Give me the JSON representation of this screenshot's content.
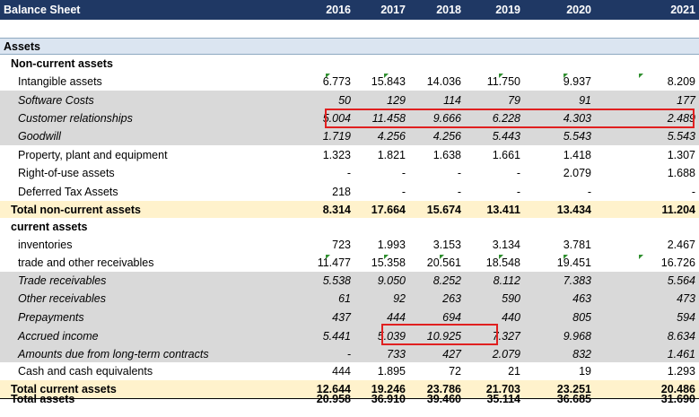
{
  "header": {
    "title": "Balance Sheet",
    "years": [
      "2016",
      "2017",
      "2018",
      "2019",
      "2020",
      "2021"
    ]
  },
  "rows": [
    {
      "type": "sec",
      "label": "Assets",
      "values": [
        "",
        "",
        "",
        "",
        "",
        ""
      ]
    },
    {
      "type": "sub",
      "label": "Non-current assets",
      "values": [
        "",
        "",
        "",
        "",
        "",
        ""
      ]
    },
    {
      "type": "norm",
      "label": "Intangible assets",
      "values": [
        "6.773",
        "15.843",
        "14.036",
        "11.750",
        "9.937",
        "8.209"
      ],
      "flags": [
        1,
        1,
        0,
        1,
        1,
        1
      ]
    },
    {
      "type": "ital",
      "label": "Software Costs",
      "values": [
        "50",
        "129",
        "114",
        "79",
        "91",
        "177"
      ]
    },
    {
      "type": "ital",
      "label": "Customer relationships",
      "values": [
        "5.004",
        "11.458",
        "9.666",
        "6.228",
        "4.303",
        "2.489"
      ]
    },
    {
      "type": "ital",
      "label": "Goodwill",
      "values": [
        "1.719",
        "4.256",
        "4.256",
        "5.443",
        "5.543",
        "5.543"
      ]
    },
    {
      "type": "norm",
      "label": "Property, plant and equipment",
      "values": [
        "1.323",
        "1.821",
        "1.638",
        "1.661",
        "1.418",
        "1.307"
      ]
    },
    {
      "type": "norm",
      "label": "Right-of-use assets",
      "values": [
        "-",
        "-",
        "-",
        "-",
        "2.079",
        "1.688"
      ]
    },
    {
      "type": "norm",
      "label": "Deferred Tax Assets",
      "values": [
        "218",
        "-",
        "-",
        "-",
        "-",
        "-"
      ]
    },
    {
      "type": "tot",
      "label": "Total non-current assets",
      "values": [
        "8.314",
        "17.664",
        "15.674",
        "13.411",
        "13.434",
        "11.204"
      ]
    },
    {
      "type": "sub",
      "label": "current assets",
      "values": [
        "",
        "",
        "",
        "",
        "",
        ""
      ]
    },
    {
      "type": "norm",
      "label": "inventories",
      "values": [
        "723",
        "1.993",
        "3.153",
        "3.134",
        "3.781",
        "2.467"
      ]
    },
    {
      "type": "norm",
      "label": "trade and other receivables",
      "values": [
        "11.477",
        "15.358",
        "20.561",
        "18.548",
        "19.451",
        "16.726"
      ],
      "flags": [
        1,
        1,
        1,
        1,
        1,
        1
      ]
    },
    {
      "type": "ital",
      "label": "Trade receivables",
      "values": [
        "5.538",
        "9.050",
        "8.252",
        "8.112",
        "7.383",
        "5.564"
      ]
    },
    {
      "type": "ital",
      "label": "Other receivables",
      "values": [
        "61",
        "92",
        "263",
        "590",
        "463",
        "473"
      ]
    },
    {
      "type": "ital",
      "label": "Prepayments",
      "values": [
        "437",
        "444",
        "694",
        "440",
        "805",
        "594"
      ]
    },
    {
      "type": "ital",
      "label": "Accrued income",
      "values": [
        "5.441",
        "5.039",
        "10.925",
        "7.327",
        "9.968",
        "8.634"
      ]
    },
    {
      "type": "ital",
      "label": "Amounts due from long-term contracts",
      "values": [
        "-",
        "733",
        "427",
        "2.079",
        "832",
        "1.461"
      ]
    },
    {
      "type": "norm",
      "label": "Cash and cash equivalents",
      "values": [
        "444",
        "1.895",
        "72",
        "21",
        "19",
        "1.293"
      ]
    },
    {
      "type": "tot",
      "label": "Total current assets",
      "values": [
        "12.644",
        "19.246",
        "23.786",
        "21.703",
        "23.251",
        "20.486"
      ]
    },
    {
      "type": "tot",
      "label": "Total assets",
      "values": [
        "20.958",
        "36.910",
        "39.460",
        "35.114",
        "36.685",
        "31.690"
      ]
    }
  ],
  "colors": {
    "header": "#1f3864",
    "total": "#fff2cc",
    "shaded": "#d9d9d9",
    "highlight": "#e02020",
    "flag": "#2f8f2f"
  }
}
